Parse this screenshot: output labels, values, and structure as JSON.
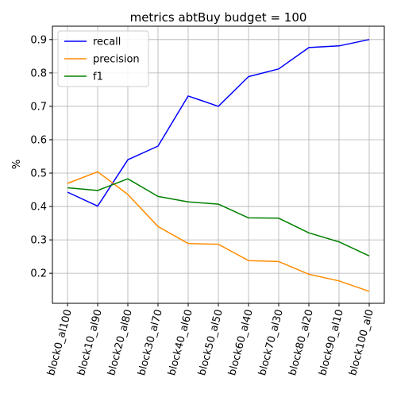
{
  "chart_data": {
    "type": "line",
    "title": "metrics abtBuy budget = 100",
    "xlabel": "",
    "ylabel": "%",
    "categories": [
      "block0_al100",
      "block10_al90",
      "block20_al80",
      "block30_al70",
      "block40_al60",
      "block50_al50",
      "block60_al40",
      "block70_al30",
      "block80_al20",
      "block90_al10",
      "block100_al0"
    ],
    "ylim": [
      0.11,
      0.94
    ],
    "yticks": [
      0.2,
      0.3,
      0.4,
      0.5,
      0.6,
      0.7,
      0.8,
      0.9
    ],
    "ytick_labels": [
      "0.2",
      "0.3",
      "0.4",
      "0.5",
      "0.6",
      "0.7",
      "0.8",
      "0.9"
    ],
    "grid": true,
    "legend_position": "top-left",
    "series": [
      {
        "name": "recall",
        "color": "#0000ff",
        "values": [
          0.443,
          0.401,
          0.54,
          0.581,
          0.731,
          0.7,
          0.789,
          0.812,
          0.876,
          0.881,
          0.9
        ]
      },
      {
        "name": "precision",
        "color": "#ff8c00",
        "values": [
          0.469,
          0.504,
          0.436,
          0.34,
          0.289,
          0.287,
          0.238,
          0.235,
          0.197,
          0.177,
          0.146
        ]
      },
      {
        "name": "f1",
        "color": "#008000",
        "values": [
          0.456,
          0.448,
          0.483,
          0.43,
          0.414,
          0.407,
          0.366,
          0.365,
          0.321,
          0.294,
          0.252
        ]
      }
    ]
  }
}
